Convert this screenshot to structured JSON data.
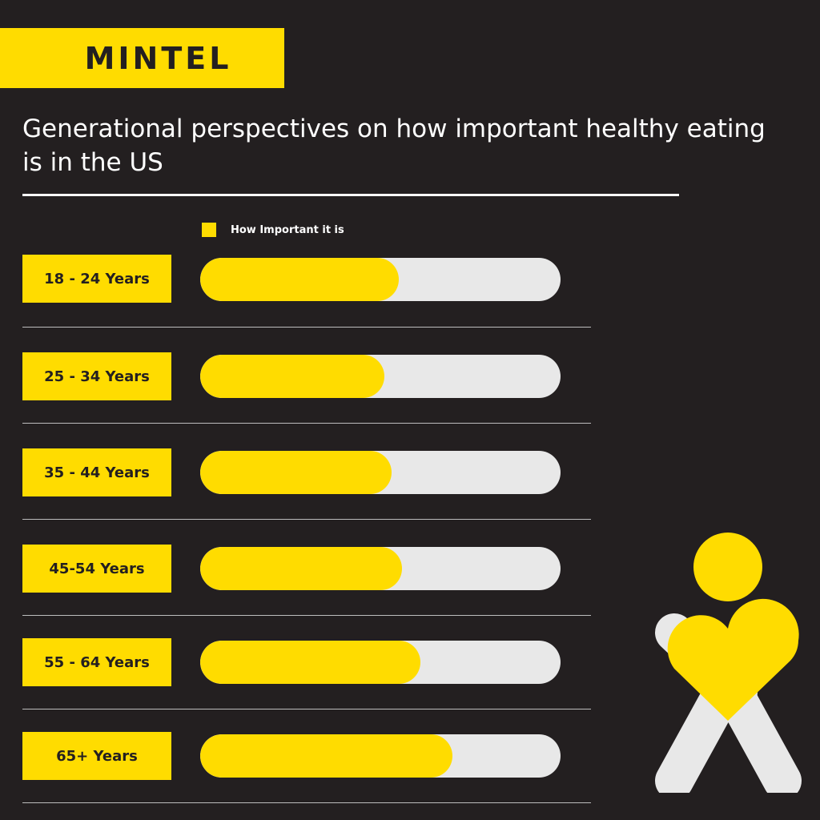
{
  "brand": {
    "name": "MINTEL"
  },
  "title": "Generational perspectives on how important healthy eating is in the US",
  "colors": {
    "background": "#231f20",
    "accent": "#ffdc00",
    "track": "#e8e8e8",
    "text": "#ffffff"
  },
  "chart_data": {
    "type": "bar",
    "orientation": "horizontal",
    "title": "Generational perspectives on how important healthy eating is in the US",
    "legend": [
      "How Important it is"
    ],
    "legend_placement": "top-left",
    "categories": [
      "18 - 24 Years",
      "25 - 34 Years",
      "35 - 44 Years",
      "45-54 Years",
      "55 - 64 Years",
      "65+ Years"
    ],
    "series": [
      {
        "name": "How Important it is",
        "values": [
          0.55,
          0.51,
          0.53,
          0.56,
          0.61,
          0.7
        ]
      }
    ],
    "xlim": [
      0,
      1
    ],
    "grid": false
  }
}
